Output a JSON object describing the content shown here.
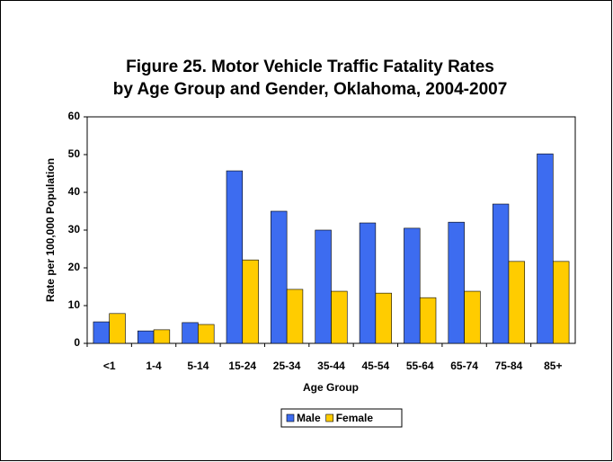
{
  "chart_data": {
    "type": "bar",
    "title": "Figure 25. Motor Vehicle Traffic Fatality Rates",
    "subtitle": "by Age Group and Gender, Oklahoma, 2004-2007",
    "xlabel": "Age Group",
    "ylabel": "Rate per 100,000 Population",
    "categories": [
      "<1",
      "1-4",
      "5-14",
      "15-24",
      "25-34",
      "35-44",
      "45-54",
      "55-64",
      "65-74",
      "75-84",
      "85+"
    ],
    "series": [
      {
        "name": "Male",
        "color": "#3d6cf0",
        "values": [
          5.7,
          3.3,
          5.5,
          45.7,
          35,
          30,
          31.9,
          30.5,
          32.1,
          36.9,
          50.2
        ]
      },
      {
        "name": "Female",
        "color": "#ffcc00",
        "values": [
          7.9,
          3.6,
          5,
          22.1,
          14.3,
          13.8,
          13.3,
          12.1,
          13.8,
          21.7,
          21.7
        ]
      }
    ],
    "ylim": [
      0,
      60
    ],
    "yticks": [
      0,
      10,
      20,
      30,
      40,
      50,
      60
    ],
    "grid": false,
    "legend": "bottom"
  }
}
